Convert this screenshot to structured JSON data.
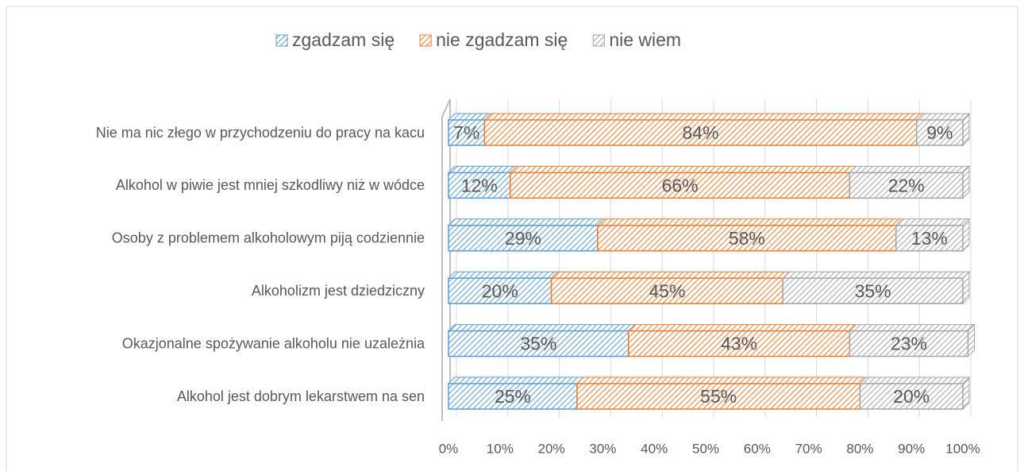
{
  "chart_data": {
    "type": "stacked_bar_horizontal",
    "categories": [
      "Nie ma nic złego w przychodzeniu do pracy na kacu",
      "Alkohol w piwie jest mniej szkodliwy niż w wódce",
      "Osoby z problemem alkoholowym piją codziennie",
      "Alkoholizm jest dziedziczny",
      "Okazjonalne spożywanie alkoholu nie uzależnia",
      "Alkohol jest dobrym lekarstwem na sen"
    ],
    "series": [
      {
        "name": "zgadzam się",
        "color": "#5b9bd5",
        "values": [
          7,
          12,
          29,
          20,
          35,
          25
        ],
        "value_labels": [
          "7%",
          "12%",
          "29%",
          "20%",
          "35%",
          "25%"
        ]
      },
      {
        "name": "nie zgadzam się",
        "color": "#ed7d31",
        "values": [
          84,
          66,
          58,
          45,
          43,
          55
        ],
        "value_labels": [
          "84%",
          "66%",
          "58%",
          "45%",
          "43%",
          "55%"
        ]
      },
      {
        "name": "nie wiem",
        "color": "#a5a5a5",
        "values": [
          9,
          22,
          13,
          35,
          23,
          20
        ],
        "value_labels": [
          "9%",
          "22%",
          "13%",
          "35%",
          "23%",
          "20%"
        ]
      }
    ],
    "xlim": [
      0,
      100
    ],
    "xticks": [
      {
        "value": 0,
        "label": "0%"
      },
      {
        "value": 10,
        "label": "10%"
      },
      {
        "value": 20,
        "label": "20%"
      },
      {
        "value": 30,
        "label": "30%"
      },
      {
        "value": 40,
        "label": "40%"
      },
      {
        "value": 50,
        "label": "50%"
      },
      {
        "value": 60,
        "label": "60%"
      },
      {
        "value": 70,
        "label": "70%"
      },
      {
        "value": 80,
        "label": "80%"
      },
      {
        "value": 90,
        "label": "90%"
      },
      {
        "value": 100,
        "label": "100%"
      }
    ],
    "grid": true,
    "legend": "top"
  }
}
